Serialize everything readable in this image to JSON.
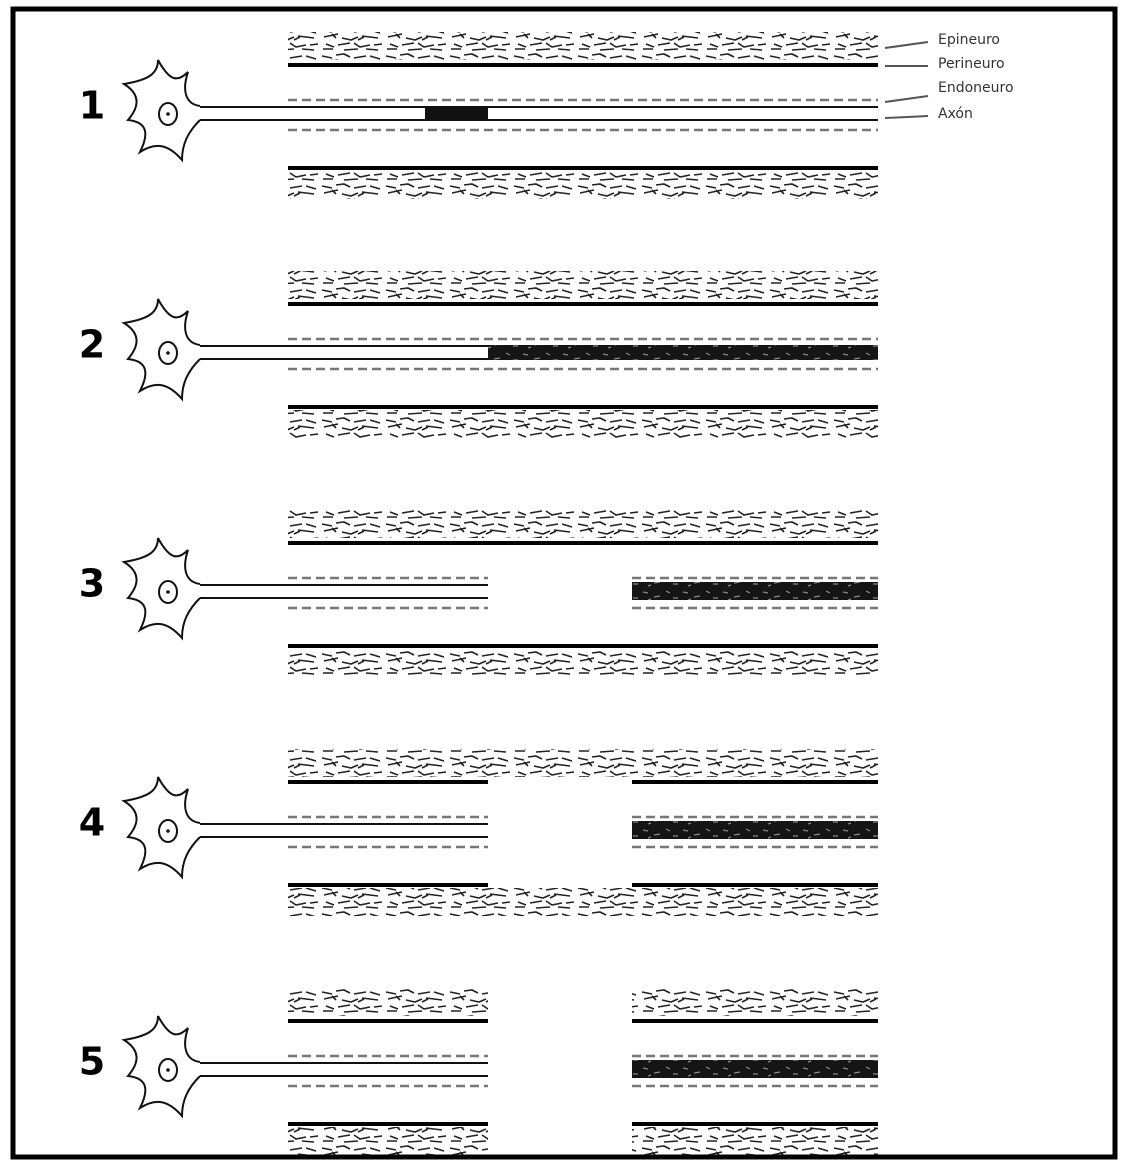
{
  "rows": [
    {
      "label": "1"
    },
    {
      "label": "2"
    },
    {
      "label": "3"
    },
    {
      "label": "4"
    },
    {
      "label": "5"
    }
  ],
  "legend": [
    "Epineuro",
    "Perineuro",
    "Endoneuro",
    "Axón"
  ]
}
